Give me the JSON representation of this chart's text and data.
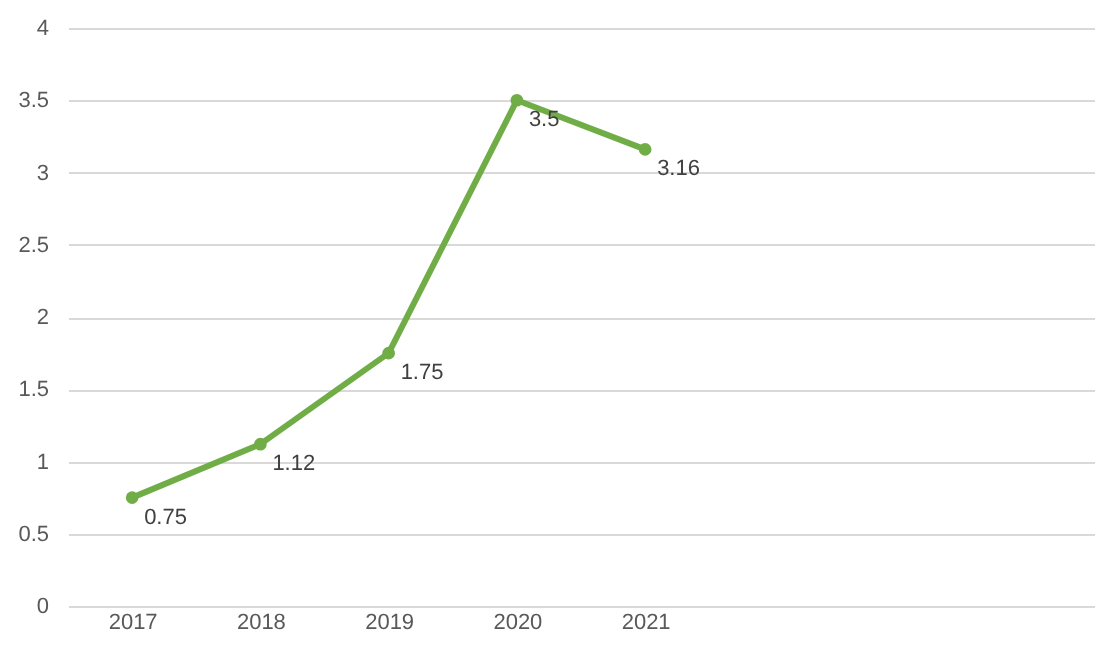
{
  "chart_data": {
    "type": "line",
    "categories": [
      "2017",
      "2018",
      "2019",
      "2020",
      "2021",
      null,
      null,
      null
    ],
    "series": [
      {
        "color": "#70ad47",
        "values": [
          0.75,
          1.12,
          1.75,
          3.5,
          3.16,
          null,
          null,
          null
        ]
      }
    ],
    "ylim": [
      0,
      4
    ],
    "yticks": [
      0,
      0.5,
      1,
      1.5,
      2,
      2.5,
      3,
      3.5,
      4
    ],
    "grid": "y",
    "marker": "circle",
    "line_style": "solid",
    "data_labels": true
  }
}
